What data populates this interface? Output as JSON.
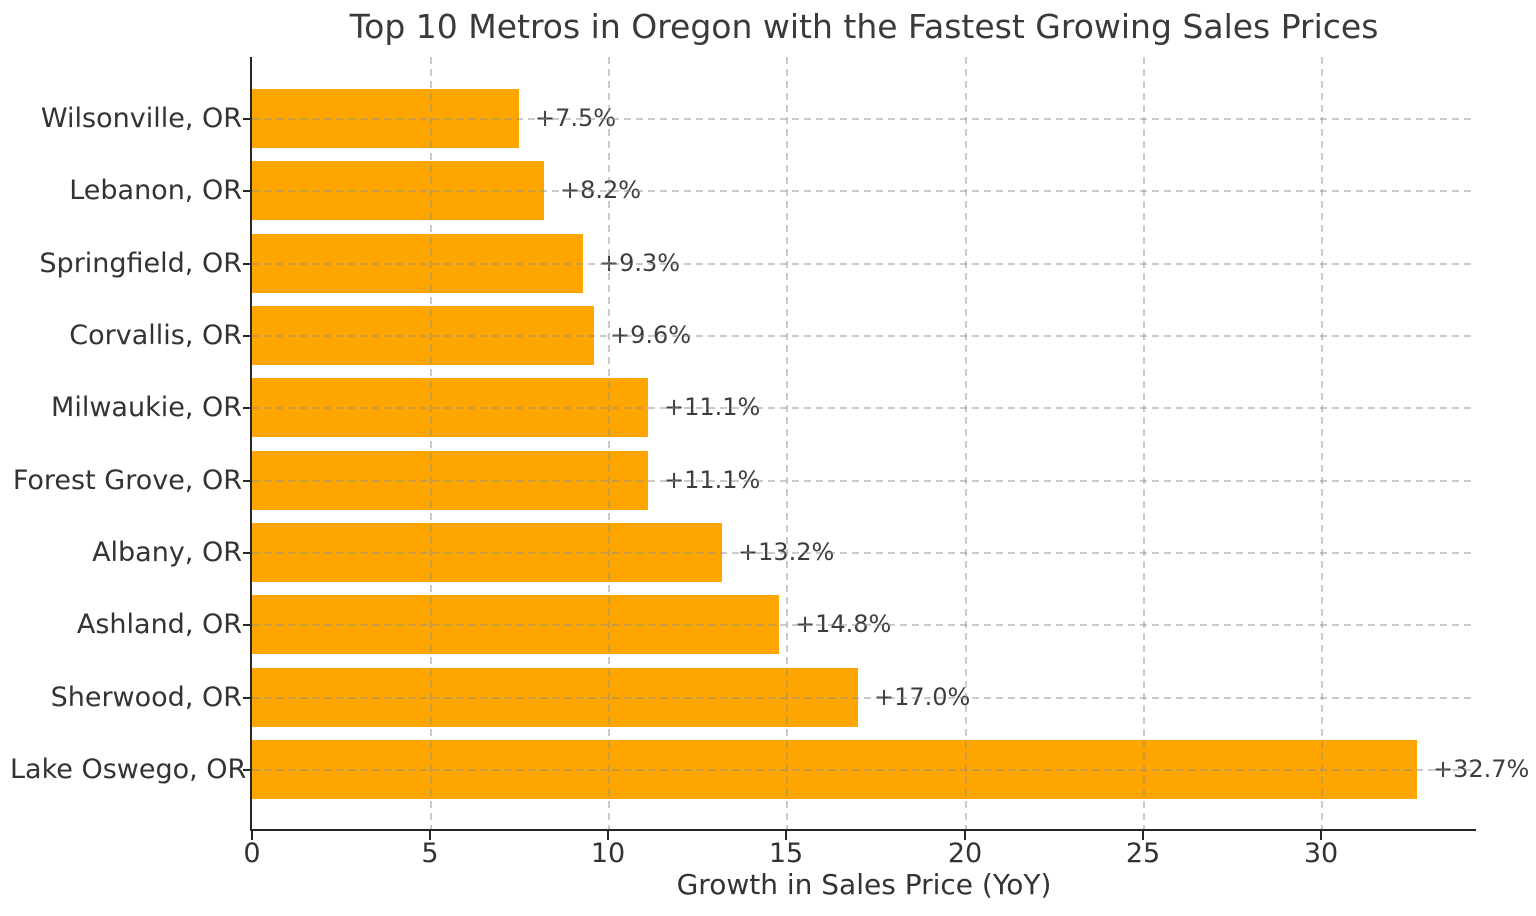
{
  "chart_data": {
    "type": "bar",
    "orientation": "horizontal",
    "title": "Top 10 Metros in Oregon with the Fastest Growing Sales Prices",
    "xlabel": "Growth in Sales Price (YoY)",
    "ylabel": "",
    "categories": [
      "Wilsonville, OR",
      "Lebanon, OR",
      "Springfield, OR",
      "Corvallis, OR",
      "Milwaukie, OR",
      "Forest Grove, OR",
      "Albany, OR",
      "Ashland, OR",
      "Sherwood, OR",
      "Lake Oswego, OR"
    ],
    "values": [
      7.5,
      8.2,
      9.3,
      9.6,
      11.1,
      11.1,
      13.2,
      14.8,
      17.0,
      32.7
    ],
    "value_labels": [
      "+7.5%",
      "+8.2%",
      "+9.3%",
      "+9.6%",
      "+11.1%",
      "+11.1%",
      "+13.2%",
      "+14.8%",
      "+17.0%",
      "+32.7%"
    ],
    "xlim": [
      0,
      34.35
    ],
    "xticks": [
      0,
      5,
      10,
      15,
      20,
      25,
      30
    ],
    "grid": true,
    "grid_style": "dashed",
    "legend": null,
    "colors": {
      "bar": "#FFA500",
      "title_text": "#3a3a3a",
      "tick_text": "#333333",
      "value_text": "#3d3d3d",
      "grid": "#cccccc",
      "spine": "#262626",
      "background": "#ffffff"
    }
  }
}
